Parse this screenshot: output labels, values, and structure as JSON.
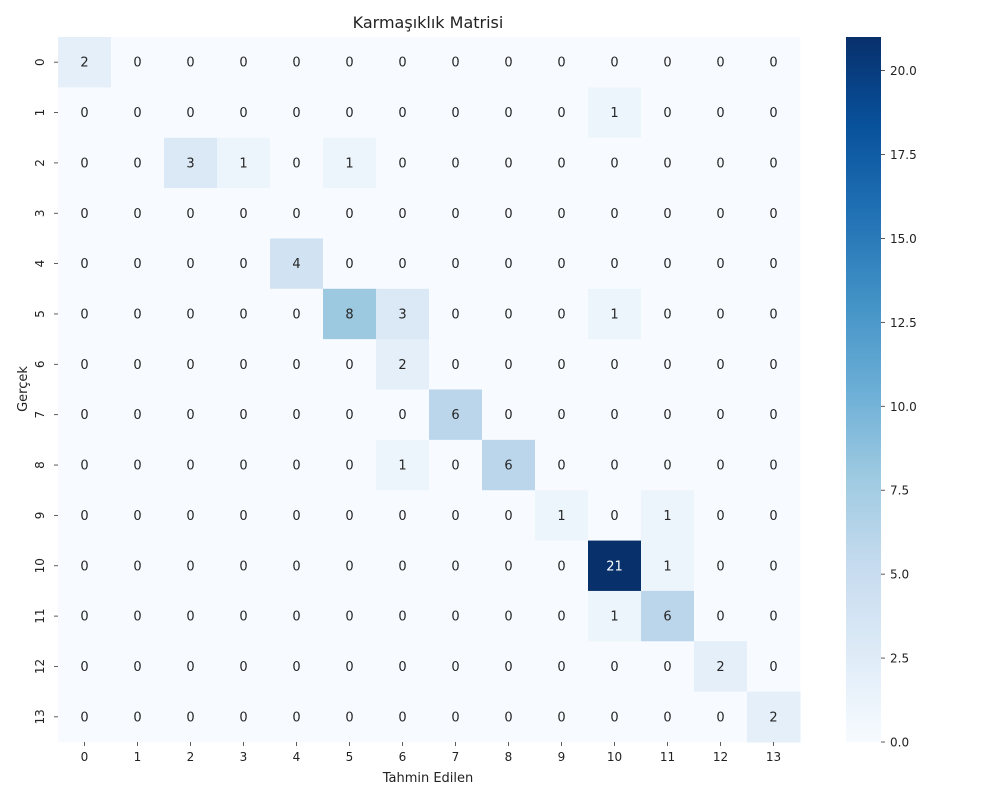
{
  "chart_data": {
    "type": "heatmap",
    "title": "Karmaşıklık Matrisi",
    "xlabel": "Tahmin Edilen",
    "ylabel": "Gerçek",
    "x_categories": [
      "0",
      "1",
      "2",
      "3",
      "4",
      "5",
      "6",
      "7",
      "8",
      "9",
      "10",
      "11",
      "12",
      "13"
    ],
    "y_categories": [
      "0",
      "1",
      "2",
      "3",
      "4",
      "5",
      "6",
      "7",
      "8",
      "9",
      "10",
      "11",
      "12",
      "13"
    ],
    "values": [
      [
        2,
        0,
        0,
        0,
        0,
        0,
        0,
        0,
        0,
        0,
        0,
        0,
        0,
        0
      ],
      [
        0,
        0,
        0,
        0,
        0,
        0,
        0,
        0,
        0,
        0,
        1,
        0,
        0,
        0
      ],
      [
        0,
        0,
        3,
        1,
        0,
        1,
        0,
        0,
        0,
        0,
        0,
        0,
        0,
        0
      ],
      [
        0,
        0,
        0,
        0,
        0,
        0,
        0,
        0,
        0,
        0,
        0,
        0,
        0,
        0
      ],
      [
        0,
        0,
        0,
        0,
        4,
        0,
        0,
        0,
        0,
        0,
        0,
        0,
        0,
        0
      ],
      [
        0,
        0,
        0,
        0,
        0,
        8,
        3,
        0,
        0,
        0,
        1,
        0,
        0,
        0
      ],
      [
        0,
        0,
        0,
        0,
        0,
        0,
        2,
        0,
        0,
        0,
        0,
        0,
        0,
        0
      ],
      [
        0,
        0,
        0,
        0,
        0,
        0,
        0,
        6,
        0,
        0,
        0,
        0,
        0,
        0
      ],
      [
        0,
        0,
        0,
        0,
        0,
        0,
        1,
        0,
        6,
        0,
        0,
        0,
        0,
        0
      ],
      [
        0,
        0,
        0,
        0,
        0,
        0,
        0,
        0,
        0,
        1,
        0,
        1,
        0,
        0
      ],
      [
        0,
        0,
        0,
        0,
        0,
        0,
        0,
        0,
        0,
        0,
        21,
        1,
        0,
        0
      ],
      [
        0,
        0,
        0,
        0,
        0,
        0,
        0,
        0,
        0,
        0,
        1,
        6,
        0,
        0
      ],
      [
        0,
        0,
        0,
        0,
        0,
        0,
        0,
        0,
        0,
        0,
        0,
        0,
        2,
        0
      ],
      [
        0,
        0,
        0,
        0,
        0,
        0,
        0,
        0,
        0,
        0,
        0,
        0,
        0,
        2
      ]
    ],
    "colorscale": "Blues",
    "colorbar": {
      "range": [
        0,
        21
      ],
      "ticks": [
        0.0,
        2.5,
        5.0,
        7.5,
        10.0,
        12.5,
        15.0,
        17.5,
        20.0
      ],
      "tick_labels": [
        "0.0",
        "2.5",
        "5.0",
        "7.5",
        "10.0",
        "12.5",
        "15.0",
        "17.5",
        "20.0"
      ]
    },
    "annotations": "cell counts shown in each cell",
    "grid": false
  }
}
